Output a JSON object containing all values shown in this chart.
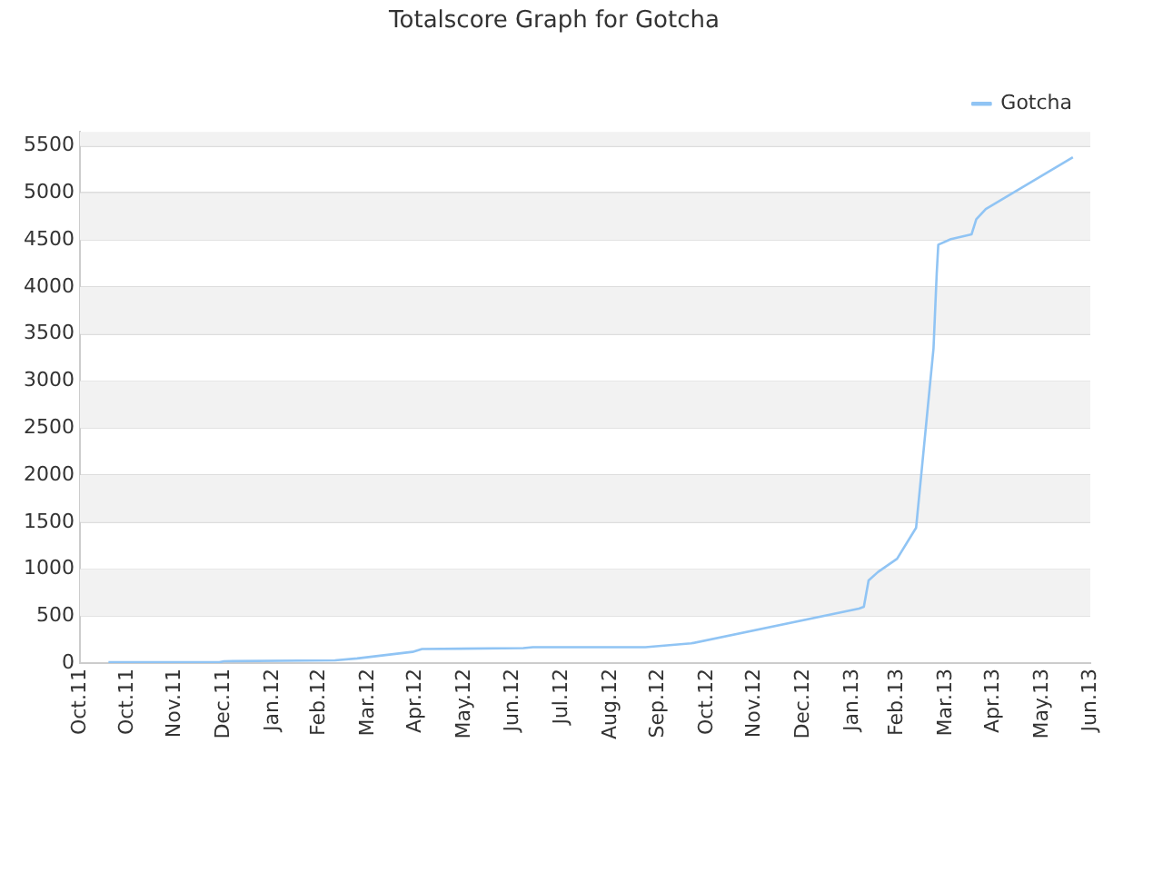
{
  "chart_data": {
    "type": "line",
    "title": "Totalscore Graph for Gotcha",
    "xlim": [
      "2011-10-01",
      "2013-06-30"
    ],
    "xticks": [
      {
        "value": "2011-10-01",
        "label": "Oct.11"
      },
      {
        "value": "2011-10-31",
        "label": "Oct.11"
      },
      {
        "value": "2011-11-30",
        "label": "Nov.11"
      },
      {
        "value": "2011-12-31",
        "label": "Dec.11"
      },
      {
        "value": "2012-01-31",
        "label": "Jan.12"
      },
      {
        "value": "2012-02-29",
        "label": "Feb.12"
      },
      {
        "value": "2012-03-31",
        "label": "Mar.12"
      },
      {
        "value": "2012-04-30",
        "label": "Apr.12"
      },
      {
        "value": "2012-05-31",
        "label": "May.12"
      },
      {
        "value": "2012-06-30",
        "label": "Jun.12"
      },
      {
        "value": "2012-07-31",
        "label": "Jul.12"
      },
      {
        "value": "2012-08-31",
        "label": "Aug.12"
      },
      {
        "value": "2012-09-30",
        "label": "Sep.12"
      },
      {
        "value": "2012-10-31",
        "label": "Oct.12"
      },
      {
        "value": "2012-11-30",
        "label": "Nov.12"
      },
      {
        "value": "2012-12-31",
        "label": "Dec.12"
      },
      {
        "value": "2013-01-31",
        "label": "Jan.13"
      },
      {
        "value": "2013-02-28",
        "label": "Feb.13"
      },
      {
        "value": "2013-03-31",
        "label": "Mar.13"
      },
      {
        "value": "2013-04-30",
        "label": "Apr.13"
      },
      {
        "value": "2013-05-31",
        "label": "May.13"
      },
      {
        "value": "2013-06-30",
        "label": "Jun.13"
      }
    ],
    "ylim": [
      0,
      5650
    ],
    "yticks": [
      0,
      500,
      1000,
      1500,
      2000,
      2500,
      3000,
      3500,
      4000,
      4500,
      5000,
      5500
    ],
    "grid": "y",
    "legend": "top right",
    "marker": "none",
    "line_style": "solid",
    "series": [
      {
        "name": "Gotcha",
        "color": "#90c4f4",
        "x": [
          "2011-10-19",
          "2011-12-28",
          "2011-12-31",
          "2012-03-10",
          "2012-03-24",
          "2012-04-28",
          "2012-05-04",
          "2012-07-07",
          "2012-07-13",
          "2012-09-22",
          "2012-10-21",
          "2013-02-04",
          "2013-02-07",
          "2013-02-10",
          "2013-02-16",
          "2013-02-28",
          "2013-03-12",
          "2013-03-23",
          "2013-03-25",
          "2013-03-26",
          "2013-04-03",
          "2013-04-16",
          "2013-04-19",
          "2013-04-25",
          "2013-06-19"
        ],
        "values": [
          10,
          10,
          20,
          30,
          50,
          120,
          150,
          160,
          170,
          170,
          210,
          580,
          600,
          880,
          970,
          1110,
          1440,
          3350,
          4140,
          4450,
          4510,
          4560,
          4720,
          4830,
          5380
        ]
      }
    ]
  }
}
